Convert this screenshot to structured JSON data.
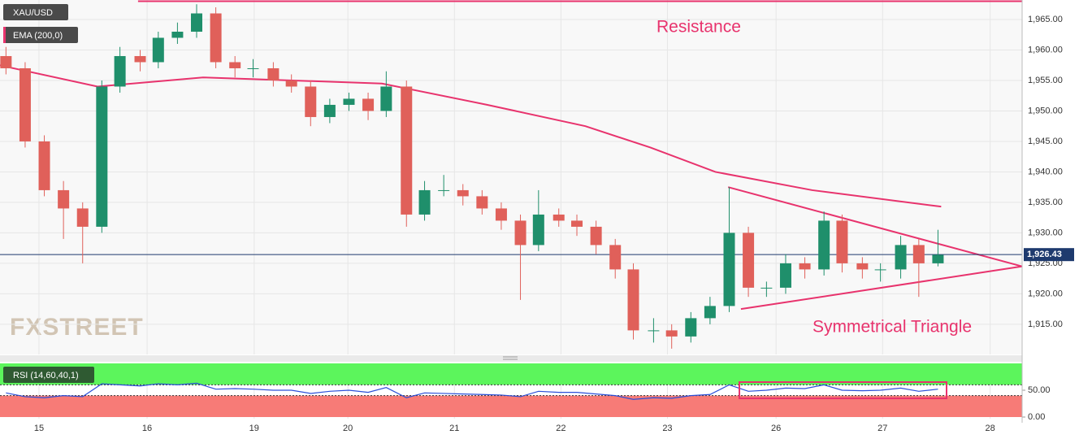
{
  "chart_data": [
    {
      "type": "candlestick",
      "title": "XAU/USD",
      "x": [
        -0.31,
        -0.13,
        0.05,
        0.23,
        0.41,
        0.59,
        0.76,
        0.95,
        1.12,
        1.3,
        1.48,
        1.66,
        1.84,
        2.01,
        2.2,
        2.37,
        2.55,
        2.73,
        2.91,
        3.09,
        3.26,
        3.45,
        3.62,
        3.8,
        3.98,
        4.16,
        4.34,
        4.52,
        4.69,
        4.88,
        5.05,
        5.23,
        5.41,
        5.58,
        5.77,
        5.94,
        6.12,
        6.3,
        6.48,
        6.66,
        6.83,
        7.01,
        7.19,
        7.37,
        7.54,
        7.73,
        7.9,
        8.09,
        8.26,
        8.44
      ],
      "open": [
        1959,
        1957,
        1945,
        1937,
        1934,
        1931,
        1954,
        1959,
        1958,
        1962,
        1963,
        1966,
        1958,
        1957,
        1957,
        1955,
        1954,
        1949,
        1951,
        1952,
        1950,
        1954,
        1933,
        1937,
        1937,
        1936,
        1934,
        1932,
        1928,
        1933,
        1932,
        1931,
        1928,
        1924,
        1914,
        1914,
        1913,
        1916,
        1918,
        1930,
        1921,
        1921,
        1925,
        1924,
        1932,
        1925,
        1924,
        1924,
        1928,
        1925
      ],
      "high": [
        1960.5,
        1958,
        1946,
        1938.5,
        1935,
        1955,
        1960.5,
        1960,
        1963,
        1964.5,
        1967.5,
        1967,
        1959,
        1958.5,
        1958,
        1956,
        1955,
        1952,
        1953,
        1953,
        1956.5,
        1955,
        1938.5,
        1939.5,
        1938,
        1937,
        1935,
        1933,
        1937,
        1934,
        1933,
        1932,
        1929,
        1925,
        1916,
        1915,
        1917,
        1919.5,
        1937.5,
        1931,
        1922,
        1926.5,
        1926,
        1933.5,
        1933,
        1926,
        1925,
        1929.5,
        1929,
        1930.5
      ],
      "low": [
        1956,
        1944,
        1936,
        1929,
        1925,
        1930,
        1953,
        1956.5,
        1957,
        1961,
        1962,
        1957,
        1955.5,
        1955.5,
        1954,
        1953,
        1947.5,
        1948,
        1950,
        1948.5,
        1949,
        1931,
        1932,
        1936,
        1934.5,
        1933,
        1930.5,
        1919,
        1927,
        1931,
        1929.5,
        1926.5,
        1922.5,
        1912.5,
        1912,
        1911,
        1912,
        1915,
        1917,
        1919.5,
        1919.5,
        1920,
        1922.5,
        1923,
        1923.5,
        1922.5,
        1922,
        1922.5,
        1919.5,
        1924.5
      ],
      "close": [
        1957,
        1945,
        1937,
        1934,
        1931,
        1954,
        1959,
        1958,
        1962,
        1963,
        1966,
        1958,
        1957,
        1957,
        1955,
        1954,
        1949,
        1951,
        1952,
        1950,
        1954,
        1933,
        1937,
        1937,
        1936,
        1934,
        1932,
        1928,
        1933,
        1932,
        1931,
        1928,
        1924,
        1914,
        1914,
        1913,
        1916,
        1918,
        1930,
        1921,
        1921,
        1925,
        1924,
        1932,
        1925,
        1924,
        1924,
        1928,
        1925,
        1926.4
      ],
      "up_color": "#1f8f6b",
      "down_color": "#e0605a",
      "xlim": [
        -0.366,
        9.23
      ],
      "ylim": [
        1910.05,
        1968.2
      ],
      "xticks": [
        {
          "value": 0,
          "label": "15"
        },
        {
          "value": 1.015,
          "label": "16"
        },
        {
          "value": 2.02,
          "label": "19"
        },
        {
          "value": 2.9,
          "label": "20"
        },
        {
          "value": 3.9,
          "label": "21"
        },
        {
          "value": 4.9,
          "label": "22"
        },
        {
          "value": 5.9,
          "label": "23"
        },
        {
          "value": 6.92,
          "label": "26"
        },
        {
          "value": 7.92,
          "label": "27"
        },
        {
          "value": 8.93,
          "label": "28"
        }
      ],
      "yticks": [
        {
          "value": 1915,
          "label": "1,915.00"
        },
        {
          "value": 1920,
          "label": "1,920.00"
        },
        {
          "value": 1925,
          "label": "1,925.00"
        },
        {
          "value": 1930,
          "label": "1,930.00"
        },
        {
          "value": 1935,
          "label": "1,935.00"
        },
        {
          "value": 1940,
          "label": "1,940.00"
        },
        {
          "value": 1945,
          "label": "1,945.00"
        },
        {
          "value": 1950,
          "label": "1,950.00"
        },
        {
          "value": 1955,
          "label": "1,955.00"
        },
        {
          "value": 1960,
          "label": "1,960.00"
        },
        {
          "value": 1965,
          "label": "1,965.00"
        }
      ],
      "grid": true,
      "overlays": [
        {
          "name": "EMA (200,0)",
          "color": "#e8336d",
          "x": [
            -0.37,
            0.55,
            1.54,
            3.22,
            4.21,
            5.13,
            5.74,
            6.35,
            7.26,
            8.47
          ],
          "values": [
            1957.5,
            1954,
            1955.5,
            1954.5,
            1951,
            1947.5,
            1944,
            1940,
            1937,
            1934.3
          ]
        }
      ],
      "trendlines": [
        {
          "color": "#e8336d",
          "x": [
            0.93,
            9.23
          ],
          "values": [
            1968,
            1968
          ]
        },
        {
          "color": "#e8336d",
          "x": [
            6.47,
            9.23
          ],
          "values": [
            1937.5,
            1924.5
          ]
        },
        {
          "color": "#e8336d",
          "x": [
            6.59,
            9.23
          ],
          "values": [
            1917.5,
            1924.5
          ]
        }
      ],
      "current_price": {
        "value": 1926.43,
        "label": "1,926.43",
        "color": "#1e3a6e"
      },
      "annotations": [
        "Resistance",
        "Symmetrical Triangle"
      ],
      "watermark": "FXSTREET"
    },
    {
      "type": "line",
      "title": "RSI (14,60,40,1)",
      "x": [
        -0.31,
        -0.13,
        0.05,
        0.23,
        0.41,
        0.59,
        0.76,
        0.95,
        1.12,
        1.3,
        1.48,
        1.66,
        1.84,
        2.01,
        2.2,
        2.37,
        2.55,
        2.73,
        2.91,
        3.09,
        3.26,
        3.45,
        3.62,
        3.8,
        3.98,
        4.16,
        4.34,
        4.52,
        4.69,
        4.88,
        5.05,
        5.23,
        5.41,
        5.58,
        5.77,
        5.94,
        6.12,
        6.3,
        6.48,
        6.66,
        6.83,
        7.01,
        7.19,
        7.37,
        7.54,
        7.73,
        7.9,
        8.09,
        8.26,
        8.44
      ],
      "values": [
        45,
        38,
        36,
        40,
        38,
        62,
        60,
        58,
        62,
        60,
        63,
        52,
        53,
        52,
        50,
        50,
        44,
        48,
        50,
        46,
        55,
        36,
        45,
        44,
        43,
        42,
        41,
        38,
        48,
        46,
        46,
        43,
        40,
        33,
        36,
        35,
        40,
        42,
        60,
        48,
        50,
        54,
        53,
        60,
        50,
        49,
        50,
        54,
        48,
        52
      ],
      "color": "#2b4fd8",
      "ylim": [
        0,
        100
      ],
      "yticks": [
        {
          "value": 50,
          "label": "50.00"
        },
        {
          "value": 0,
          "label": "0.00"
        }
      ],
      "bands": {
        "upper": 60,
        "lower": 40,
        "upper_color": "#5cf55c",
        "lower_color": "#f77b77"
      }
    }
  ]
}
